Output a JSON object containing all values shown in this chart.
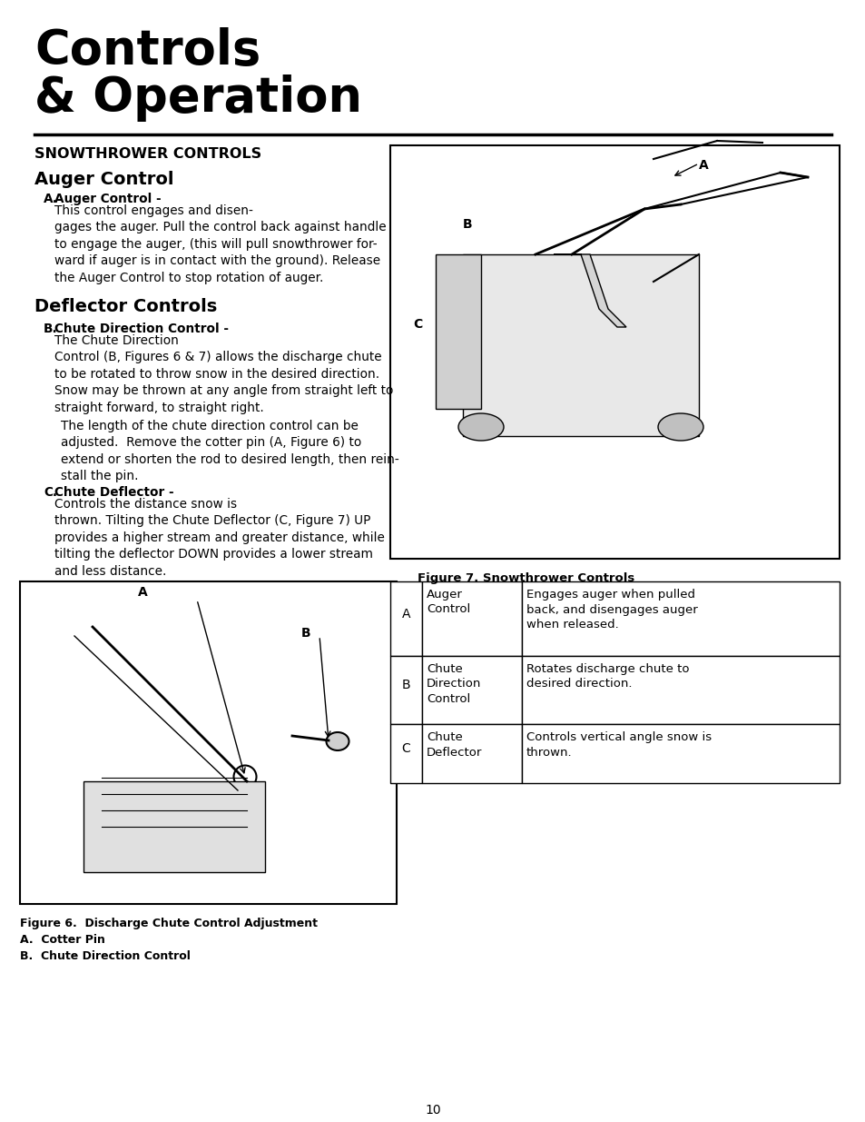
{
  "title_line1": "Controls",
  "title_line2": "& Operation",
  "section_header": "SNOWTHROWER CONTROLS",
  "subsection1": "Auger Control",
  "subsection2": "Deflector Controls",
  "item_A_label": "A.",
  "item_A_bold": "Auger Control -",
  "item_A_text": " This control engages and disen-\ngages the auger. Pull the control back against handle\nto engage the auger, (this will pull snowthrower for-\nward if auger is in contact with the ground). Release\nthe Auger Control to stop rotation of auger.",
  "item_B_label": "B.",
  "item_B_bold": "Chute Direction Control -",
  "item_B_text": " The Chute Direction\nControl (B, Figures 6 & 7) allows the discharge chute\nto be rotated to throw snow in the desired direction.\nSnow may be thrown at any angle from straight left to\nstraight forward, to straight right.",
  "item_B_text2": "The length of the chute direction control can be\nadjusted.  Remove the cotter pin (A, Figure 6) to\nextend or shorten the rod to desired length, then rein-\nstall the pin.",
  "item_C_label": "C.",
  "item_C_bold": "Chute Deflector -",
  "item_C_text": " Controls the distance snow is\nthrown. Tilting the Chute Deflector (C, Figure 7) UP\nprovides a higher stream and greater distance, while\ntilting the deflector DOWN provides a lower stream\nand less distance.",
  "fig7_caption": "Figure 7. Snowthrower Controls",
  "fig6_caption": "Figure 6.  Discharge Chute Control Adjustment\nA.  Cotter Pin\nB.  Chute Direction Control",
  "page_number": "10",
  "table_data": [
    [
      "A",
      "Auger\nControl",
      "Engages auger when pulled\nback, and disengages auger\nwhen released."
    ],
    [
      "B",
      "Chute\nDirection\nControl",
      "Rotates discharge chute to\ndesired direction."
    ],
    [
      "C",
      "Chute\nDeflector",
      "Controls vertical angle snow is\nthrown."
    ]
  ],
  "bg_color": "#ffffff",
  "text_color": "#000000",
  "title_fontsize": 36,
  "body_fontsize": 9.5,
  "section_fontsize": 11,
  "subsection_fontsize": 13
}
